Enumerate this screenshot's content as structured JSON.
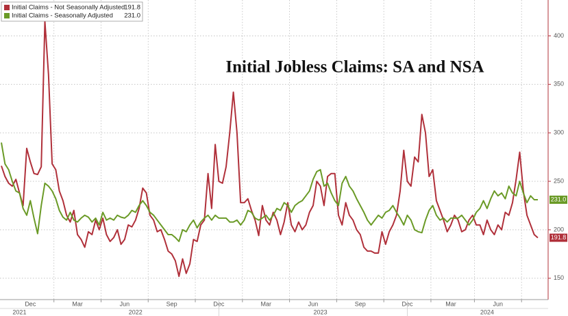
{
  "chart_data": {
    "type": "line",
    "title": "Initial Jobless Claims: SA and NSA",
    "categories": [
      null,
      null,
      null,
      null,
      null,
      null,
      null,
      null,
      "Dec",
      null,
      null,
      null,
      null,
      null,
      null,
      null,
      null,
      null,
      null,
      null,
      null,
      "Mar",
      null,
      null,
      null,
      null,
      null,
      null,
      null,
      null,
      null,
      null,
      null,
      null,
      "Jun",
      null,
      null,
      null,
      null,
      null,
      null,
      null,
      null,
      null,
      null,
      null,
      null,
      "Sep",
      null,
      null,
      null,
      null,
      null,
      null,
      null,
      null,
      null,
      null,
      null,
      null,
      "Dec",
      null,
      null,
      null,
      null,
      null,
      null,
      null,
      null,
      null,
      null,
      null,
      null,
      "Mar",
      null,
      null,
      null,
      null,
      null,
      null,
      null,
      null,
      null,
      null,
      null,
      null,
      "Jun",
      null,
      null,
      null,
      null,
      null,
      null,
      null,
      null,
      null,
      null,
      null,
      null,
      "Sep",
      null,
      null,
      null,
      null,
      null,
      null,
      null,
      null,
      null,
      null,
      null,
      null,
      "Dec",
      null,
      null,
      null,
      null,
      null,
      null,
      null,
      null,
      null,
      null,
      null,
      "Mar",
      null,
      null,
      null,
      null,
      null,
      null,
      null,
      null,
      null,
      null,
      null,
      null,
      "Jun",
      null,
      null,
      null,
      null,
      null,
      null,
      null,
      null,
      null,
      null,
      null
    ],
    "year_labels": [
      {
        "value": 5,
        "label": "2021"
      },
      {
        "value": 37,
        "label": "2022"
      },
      {
        "value": 88,
        "label": "2023"
      },
      {
        "value": 134,
        "label": "2024"
      }
    ],
    "series": [
      {
        "name": "Initial Claims - Not Seasonally Adjusted",
        "color": "#b0303a",
        "last_label": "191.8",
        "values": [
          266,
          255,
          248,
          245,
          252,
          238,
          225,
          284,
          270,
          258,
          257,
          265,
          415,
          360,
          268,
          262,
          240,
          230,
          215,
          208,
          220,
          195,
          190,
          182,
          198,
          195,
          210,
          200,
          212,
          195,
          188,
          192,
          200,
          185,
          190,
          205,
          203,
          210,
          222,
          243,
          238,
          215,
          210,
          198,
          200,
          190,
          178,
          175,
          168,
          152,
          170,
          155,
          165,
          190,
          188,
          205,
          210,
          258,
          222,
          288,
          250,
          248,
          265,
          300,
          342,
          300,
          228,
          228,
          232,
          220,
          210,
          194,
          225,
          210,
          205,
          218,
          210,
          195,
          208,
          228,
          205,
          198,
          208,
          200,
          205,
          218,
          225,
          250,
          245,
          225,
          255,
          258,
          258,
          215,
          205,
          228,
          215,
          210,
          200,
          195,
          182,
          178,
          178,
          176,
          176,
          198,
          185,
          198,
          205,
          215,
          240,
          282,
          250,
          245,
          275,
          270,
          319,
          300,
          255,
          262,
          230,
          220,
          210,
          198,
          205,
          215,
          210,
          198,
          200,
          210,
          215,
          205,
          205,
          195,
          210,
          200,
          195,
          205,
          200,
          218,
          215,
          228,
          252,
          280,
          240,
          215,
          205,
          195,
          191.8
        ]
      },
      {
        "name": "Initial Claims - Seasonally Adjusted",
        "color": "#6a9a26",
        "last_label": "231.0",
        "values": [
          290,
          268,
          262,
          250,
          240,
          238,
          222,
          215,
          230,
          212,
          196,
          225,
          248,
          245,
          240,
          232,
          220,
          213,
          210,
          218,
          210,
          208,
          212,
          215,
          213,
          208,
          212,
          205,
          218,
          210,
          212,
          210,
          215,
          213,
          212,
          215,
          220,
          218,
          225,
          230,
          225,
          218,
          215,
          210,
          205,
          200,
          195,
          195,
          192,
          188,
          200,
          198,
          205,
          210,
          202,
          208,
          212,
          215,
          210,
          215,
          212,
          212,
          212,
          208,
          208,
          210,
          205,
          210,
          220,
          218,
          212,
          210,
          212,
          215,
          210,
          215,
          222,
          220,
          228,
          225,
          218,
          225,
          228,
          230,
          235,
          240,
          252,
          260,
          262,
          245,
          248,
          238,
          230,
          225,
          248,
          255,
          245,
          240,
          232,
          225,
          218,
          210,
          205,
          210,
          215,
          212,
          218,
          220,
          225,
          218,
          212,
          205,
          215,
          210,
          200,
          198,
          197,
          210,
          220,
          225,
          215,
          210,
          212,
          208,
          212,
          212,
          212,
          215,
          210,
          205,
          210,
          218,
          222,
          230,
          222,
          232,
          240,
          235,
          238,
          232,
          245,
          238,
          235,
          250,
          238,
          228,
          235,
          231,
          231
        ]
      }
    ],
    "ylim": [
      128,
      437
    ],
    "yticks": [
      150,
      200,
      250,
      300,
      350,
      400
    ],
    "grid": true
  }
}
